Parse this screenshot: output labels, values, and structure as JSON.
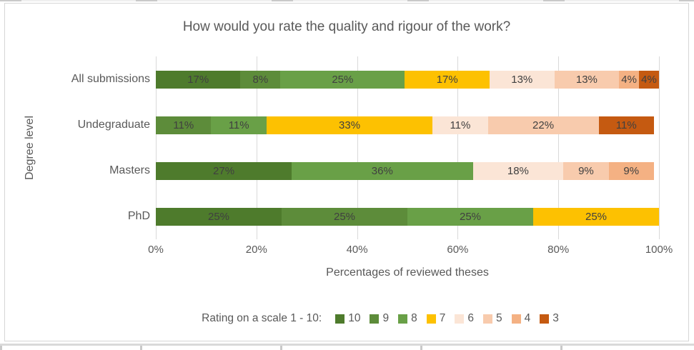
{
  "chart_data": {
    "type": "bar",
    "orientation": "horizontal",
    "stacked": true,
    "title": "How would you rate the quality and rigour of the work?",
    "xlabel": "Percentages of reviewed theses",
    "ylabel": "Degree level",
    "legend_title": "Rating on a scale 1 - 10:",
    "legend_position": "bottom",
    "grid": "vertical",
    "xlim": [
      0,
      100
    ],
    "x_ticks": [
      "0%",
      "20%",
      "40%",
      "60%",
      "80%",
      "100%"
    ],
    "categories": [
      "All submissions",
      "Undegraduate",
      "Masters",
      "PhD"
    ],
    "series": [
      {
        "name": "10",
        "color": "#4e7b2c",
        "values": [
          17,
          0,
          27,
          25
        ]
      },
      {
        "name": "9",
        "color": "#5d8c3a",
        "values": [
          8,
          11,
          0,
          25
        ]
      },
      {
        "name": "8",
        "color": "#69a047",
        "values": [
          25,
          11,
          36,
          25
        ]
      },
      {
        "name": "7",
        "color": "#fdc101",
        "values": [
          17,
          33,
          0,
          25
        ]
      },
      {
        "name": "6",
        "color": "#fbe5d6",
        "values": [
          13,
          11,
          18,
          0
        ]
      },
      {
        "name": "5",
        "color": "#f8cbad",
        "values": [
          13,
          22,
          9,
          0
        ]
      },
      {
        "name": "4",
        "color": "#f4b183",
        "values": [
          4,
          0,
          9,
          0
        ]
      },
      {
        "name": "3",
        "color": "#c55a11",
        "values": [
          4,
          11,
          0,
          0
        ]
      }
    ],
    "data_label_suffix": "%",
    "text_color": "#595959",
    "data_label_color": "#404040",
    "gridline_color": "#d9d9d9"
  }
}
